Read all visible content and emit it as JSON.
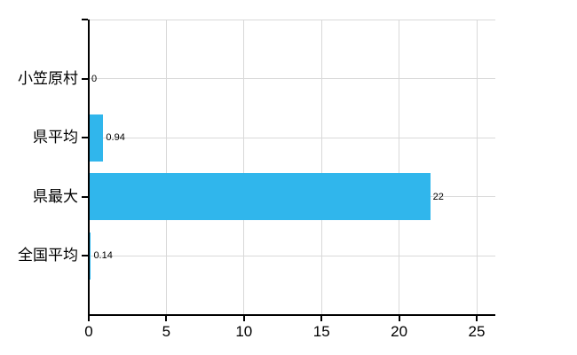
{
  "chart_data": {
    "type": "bar",
    "orientation": "horizontal",
    "title": "",
    "xlabel": "",
    "ylabel": "",
    "categories": [
      "小笠原村",
      "県平均",
      "県最大",
      "全国平均"
    ],
    "values": [
      0,
      0.94,
      22,
      0.14
    ],
    "value_labels": [
      "0",
      "0.94",
      "22",
      "0.14"
    ],
    "x_ticks": [
      0,
      5,
      10,
      15,
      20,
      25
    ],
    "x_tick_labels": [
      "0",
      "5",
      "10",
      "15",
      "20",
      "25"
    ],
    "xlim": [
      0,
      26.2
    ],
    "grid": true,
    "legend": false,
    "colors": {
      "bar": "#30b6ec",
      "grid": "#d9d9d9",
      "axis": "#000000",
      "text": "#000000",
      "background": "#ffffff"
    }
  }
}
